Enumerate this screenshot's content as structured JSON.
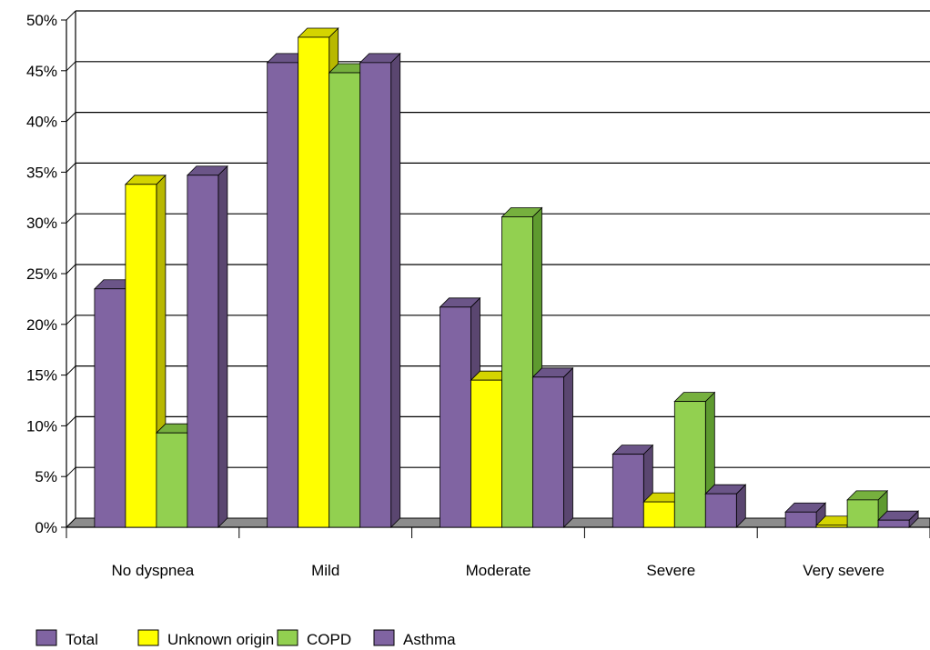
{
  "chart_data": {
    "type": "bar",
    "categories": [
      "No dyspnea",
      "Mild",
      "Moderate",
      "Severe",
      "Very severe"
    ],
    "series": [
      {
        "name": "Total",
        "values": [
          23.5,
          45.8,
          21.7,
          7.2,
          1.5
        ],
        "color": "#8064a2",
        "side": "#5a4670",
        "top": "#6b5588"
      },
      {
        "name": "Unknown origin",
        "values": [
          33.8,
          48.3,
          14.5,
          2.5,
          0.2
        ],
        "color": "#ffff00",
        "side": "#b8b800",
        "top": "#d4d400"
      },
      {
        "name": "COPD",
        "values": [
          9.3,
          44.8,
          30.6,
          12.4,
          2.7
        ],
        "color": "#92d050",
        "side": "#5e9a2f",
        "top": "#76b03e"
      },
      {
        "name": "Asthma",
        "values": [
          34.7,
          45.8,
          14.8,
          3.3,
          0.7
        ],
        "color": "#8064a2",
        "side": "#5a4670",
        "top": "#6b5588"
      }
    ],
    "yticks": [
      "0%",
      "5%",
      "10%",
      "15%",
      "20%",
      "25%",
      "30%",
      "35%",
      "40%",
      "45%",
      "50%"
    ],
    "ylim": [
      0,
      50
    ],
    "grid": true,
    "legend_position": "bottom-left"
  }
}
